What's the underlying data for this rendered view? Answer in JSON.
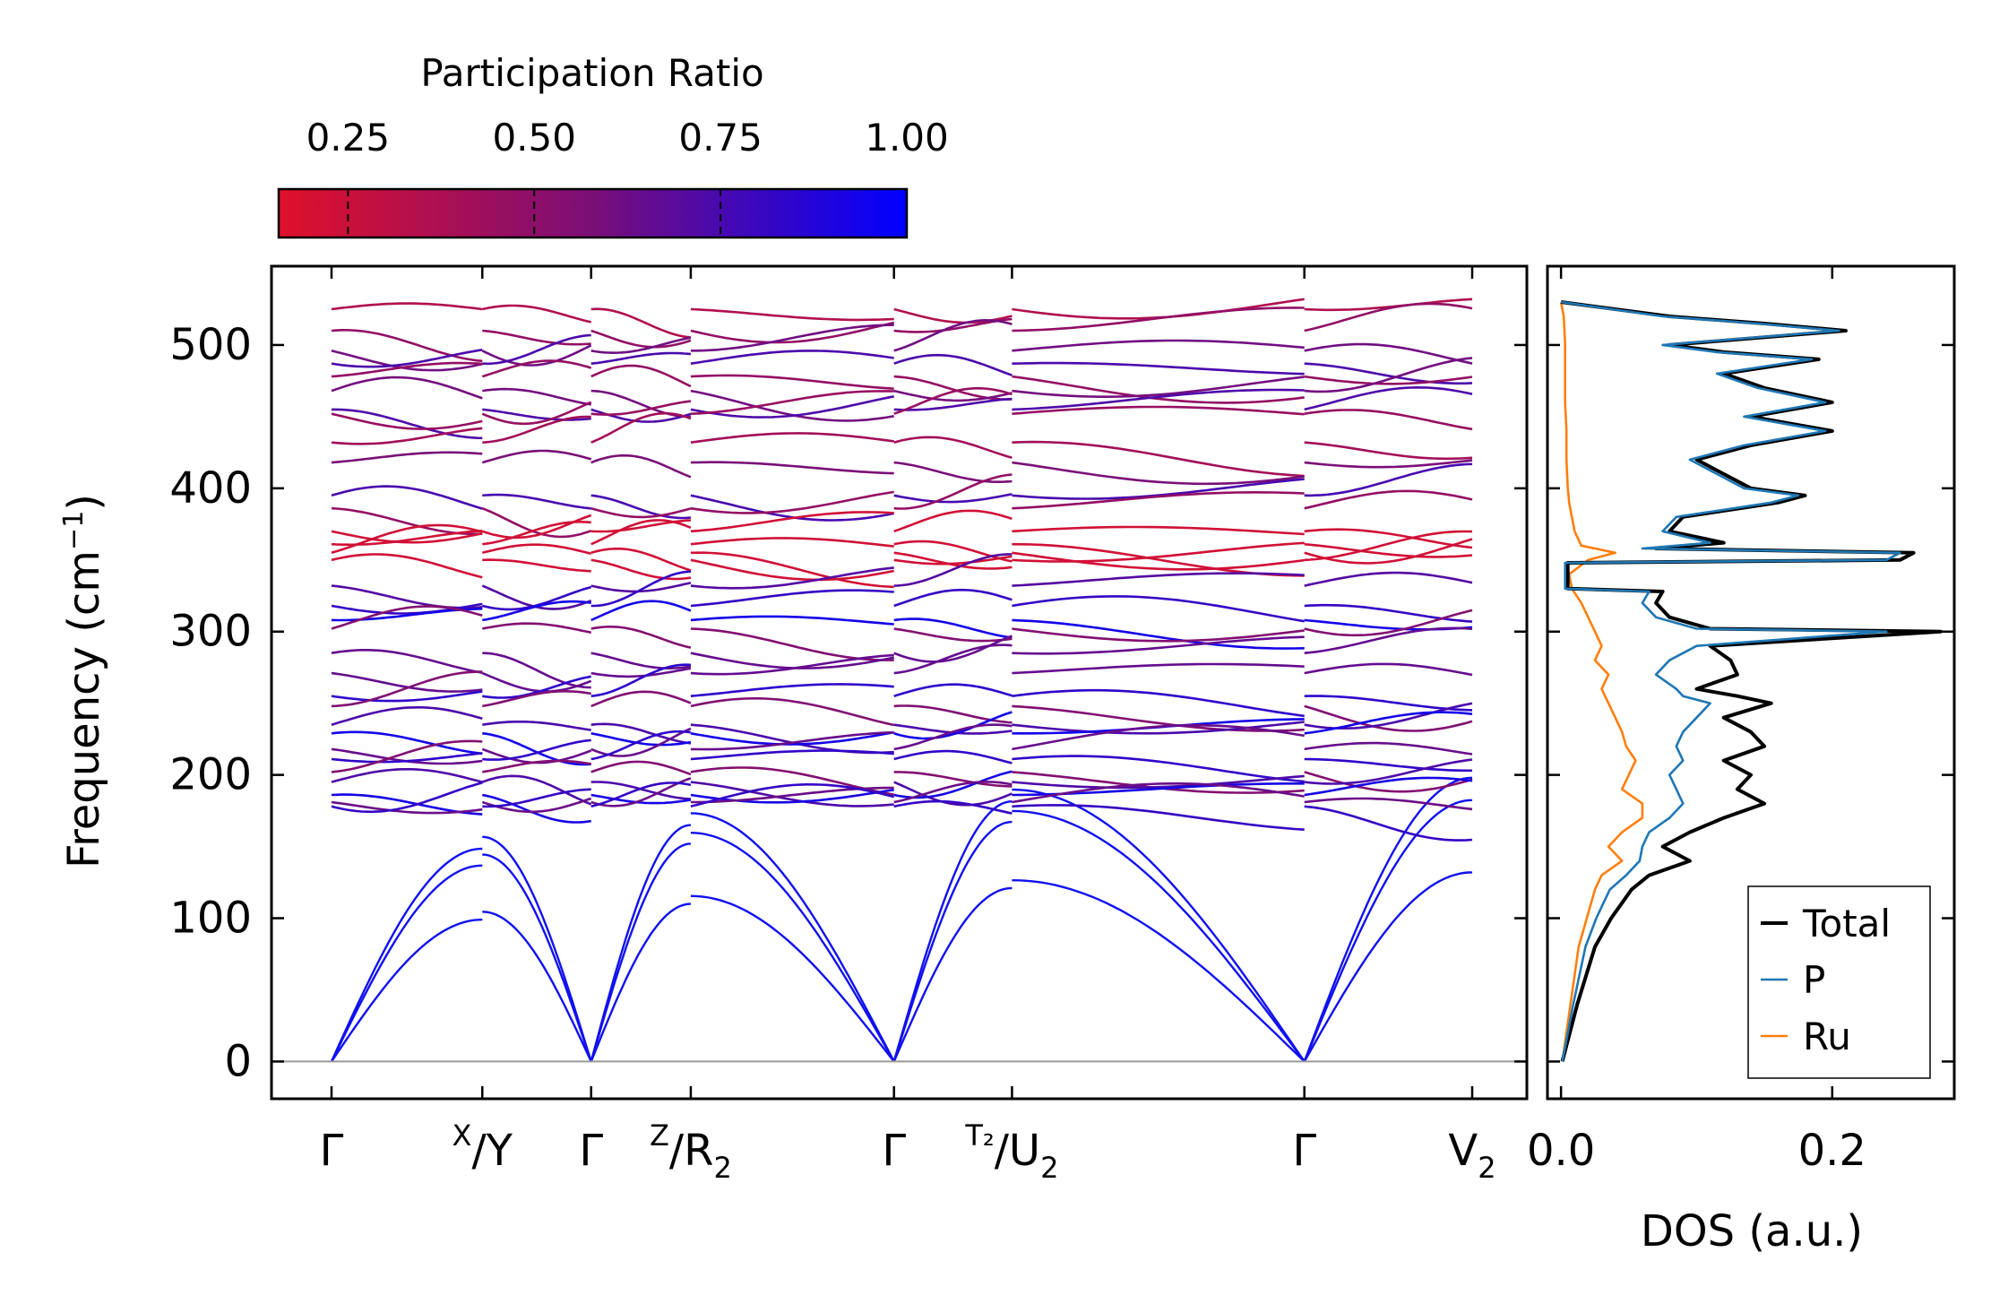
{
  "chart_data": [
    {
      "type": "line",
      "title": "",
      "ylabel": "Frequency (cm⁻¹)",
      "ylabel_main": "Frequency (cm",
      "ylabel_sup": "−1",
      "ylabel_close": ")",
      "ylim": [
        -26,
        555
      ],
      "yticks": [
        "0",
        "100",
        "200",
        "300",
        "400",
        "500"
      ],
      "ytick_values": [
        0,
        100,
        200,
        300,
        400,
        500
      ],
      "kpath_labels": [
        {
          "main": "Γ",
          "sub": "",
          "pre": ""
        },
        {
          "pre": "X",
          "main": "/Y",
          "sub": ""
        },
        {
          "main": "Γ",
          "sub": "",
          "pre": ""
        },
        {
          "pre": "Z",
          "main": "/R",
          "sub": "2"
        },
        {
          "main": "Γ",
          "sub": "",
          "pre": ""
        },
        {
          "pre": "T₂",
          "main": "/U",
          "sub": "2"
        },
        {
          "main": "Γ",
          "sub": "",
          "pre": ""
        },
        {
          "main": "V",
          "sub": "2",
          "pre": ""
        }
      ],
      "kpath_positions": [
        0,
        1.15,
        1.98,
        2.74,
        4.29,
        5.19,
        7.42,
        8.7
      ],
      "segment_breaks": [
        1.15,
        2.74,
        5.19
      ],
      "acoustic_max_freq": [
        165,
        152,
        110
      ],
      "optical_bands_sample": [
        525,
        510,
        496,
        487,
        478,
        468,
        455,
        452,
        432,
        418,
        395,
        386,
        370,
        361,
        355,
        350,
        332,
        318,
        308,
        302,
        285,
        271,
        255,
        248,
        235,
        229,
        218,
        211,
        202,
        195,
        186,
        181,
        178
      ],
      "colorbar": {
        "label": "Participation Ratio",
        "ticks": [
          "0.25",
          "0.50",
          "0.75",
          "1.00"
        ],
        "tick_values": [
          0.25,
          0.5,
          0.75,
          1.0
        ],
        "range": [
          0.157,
          1.0
        ],
        "color_low": "#e0102a",
        "color_mid": "#7a0f78",
        "color_high": "#0000ff"
      }
    },
    {
      "type": "line",
      "xlabel": "DOS (a.u.)",
      "xlim": [
        -0.01,
        0.29
      ],
      "xticks": [
        "0.0",
        "0.2"
      ],
      "xtick_values": [
        0.0,
        0.2
      ],
      "legend": {
        "placement": "bottom-right",
        "entries": [
          "Total",
          "P",
          "Ru"
        ]
      },
      "series": [
        {
          "name": "Total",
          "color": "#000000",
          "freq": [
            0,
            40,
            80,
            100,
            120,
            130,
            140,
            150,
            160,
            170,
            180,
            190,
            200,
            210,
            220,
            230,
            240,
            250,
            255,
            260,
            270,
            280,
            290,
            300,
            302,
            310,
            320,
            328,
            330,
            340,
            348,
            350,
            355,
            358,
            362,
            370,
            380,
            390,
            395,
            400,
            410,
            420,
            430,
            440,
            450,
            460,
            470,
            480,
            490,
            495,
            500,
            510,
            515,
            520,
            530
          ],
          "dos": [
            0.001,
            0.012,
            0.025,
            0.037,
            0.052,
            0.065,
            0.095,
            0.075,
            0.095,
            0.12,
            0.15,
            0.13,
            0.14,
            0.12,
            0.15,
            0.14,
            0.12,
            0.155,
            0.13,
            0.1,
            0.13,
            0.125,
            0.11,
            0.28,
            0.11,
            0.08,
            0.07,
            0.075,
            0.005,
            0.005,
            0.005,
            0.25,
            0.26,
            0.07,
            0.12,
            0.08,
            0.09,
            0.16,
            0.18,
            0.14,
            0.12,
            0.1,
            0.14,
            0.2,
            0.14,
            0.2,
            0.15,
            0.12,
            0.19,
            0.12,
            0.08,
            0.21,
            0.15,
            0.08,
            0.0
          ]
        },
        {
          "name": "P",
          "color": "#1f77b4",
          "freq": [
            0,
            40,
            80,
            100,
            120,
            130,
            140,
            150,
            160,
            170,
            180,
            190,
            200,
            210,
            220,
            230,
            240,
            250,
            255,
            260,
            270,
            280,
            290,
            300,
            302,
            310,
            320,
            328,
            330,
            340,
            348,
            350,
            355,
            358,
            362,
            370,
            380,
            390,
            395,
            400,
            410,
            420,
            430,
            440,
            450,
            460,
            470,
            480,
            490,
            495,
            500,
            510,
            515,
            520,
            530
          ],
          "dos": [
            0.001,
            0.009,
            0.018,
            0.026,
            0.036,
            0.048,
            0.058,
            0.06,
            0.065,
            0.08,
            0.09,
            0.085,
            0.08,
            0.09,
            0.085,
            0.09,
            0.1,
            0.11,
            0.09,
            0.085,
            0.07,
            0.08,
            0.1,
            0.24,
            0.1,
            0.07,
            0.06,
            0.065,
            0.003,
            0.003,
            0.003,
            0.24,
            0.25,
            0.06,
            0.11,
            0.075,
            0.085,
            0.155,
            0.175,
            0.135,
            0.115,
            0.095,
            0.135,
            0.195,
            0.135,
            0.195,
            0.145,
            0.115,
            0.185,
            0.115,
            0.075,
            0.205,
            0.145,
            0.075,
            0.0
          ]
        },
        {
          "name": "Ru",
          "color": "#ff7f0e",
          "freq": [
            0,
            40,
            80,
            100,
            120,
            130,
            140,
            150,
            160,
            170,
            180,
            190,
            200,
            210,
            220,
            230,
            240,
            250,
            260,
            270,
            280,
            290,
            300,
            310,
            320,
            330,
            340,
            350,
            355,
            360,
            370,
            380,
            390,
            400,
            420,
            440,
            460,
            480,
            500,
            520,
            530
          ],
          "dos": [
            0.001,
            0.007,
            0.013,
            0.019,
            0.025,
            0.03,
            0.045,
            0.035,
            0.045,
            0.06,
            0.06,
            0.045,
            0.05,
            0.055,
            0.048,
            0.045,
            0.04,
            0.035,
            0.03,
            0.035,
            0.025,
            0.03,
            0.025,
            0.02,
            0.015,
            0.008,
            0.006,
            0.02,
            0.04,
            0.015,
            0.01,
            0.008,
            0.006,
            0.005,
            0.004,
            0.004,
            0.003,
            0.003,
            0.003,
            0.002,
            0.0
          ]
        }
      ]
    }
  ]
}
